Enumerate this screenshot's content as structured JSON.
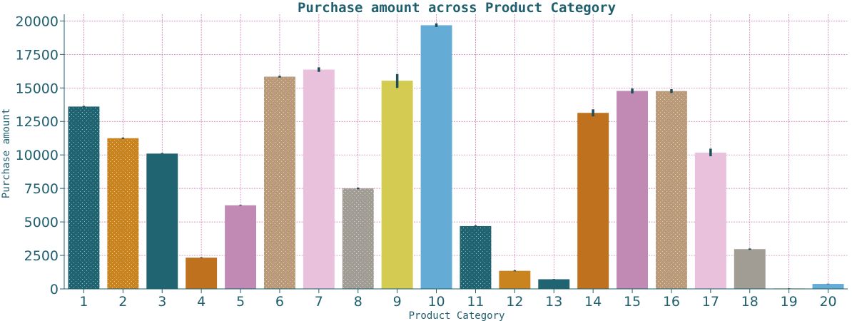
{
  "chart_data": {
    "type": "bar",
    "title": "Purchase amount across Product Category",
    "xlabel": "Product Category",
    "ylabel": "Purchase amount",
    "ylim": [
      0,
      20500
    ],
    "yticks": [
      0,
      2500,
      5000,
      7500,
      10000,
      12500,
      15000,
      17500,
      20000
    ],
    "grid": true,
    "categories": [
      "1",
      "2",
      "3",
      "4",
      "5",
      "6",
      "7",
      "8",
      "9",
      "10",
      "11",
      "12",
      "13",
      "14",
      "15",
      "16",
      "17",
      "18",
      "19",
      "20"
    ],
    "values": [
      13610,
      11250,
      10100,
      2330,
      6240,
      15840,
      16370,
      7500,
      15540,
      19680,
      4690,
      1350,
      720,
      13140,
      14780,
      14770,
      10170,
      2970,
      40,
      370
    ],
    "errors": [
      [
        13560,
        13660
      ],
      [
        11200,
        11300
      ],
      [
        10060,
        10140
      ],
      [
        2300,
        2360
      ],
      [
        6210,
        6270
      ],
      [
        15770,
        15910
      ],
      [
        16200,
        16540
      ],
      [
        7440,
        7560
      ],
      [
        15000,
        16040
      ],
      [
        19550,
        19820
      ],
      [
        4640,
        4740
      ],
      [
        1310,
        1390
      ],
      [
        700,
        740
      ],
      [
        12880,
        13400
      ],
      [
        14590,
        14960
      ],
      [
        14620,
        14910
      ],
      [
        9900,
        10470
      ],
      [
        2920,
        3020
      ],
      [
        30,
        50
      ],
      [
        350,
        390
      ]
    ],
    "colors": [
      "#1f6470",
      "#c9831f",
      "#1f6470",
      "#c0711e",
      "#c08ab5",
      "#bb9a7a",
      "#eac1dc",
      "#a19d95",
      "#d4cb52",
      "#64acd6",
      "#1f6470",
      "#c9831f",
      "#1f6470",
      "#c0711e",
      "#c08ab5",
      "#bb9a7a",
      "#eac1dc",
      "#a19d95",
      "#d4cb52",
      "#64acd6"
    ]
  }
}
